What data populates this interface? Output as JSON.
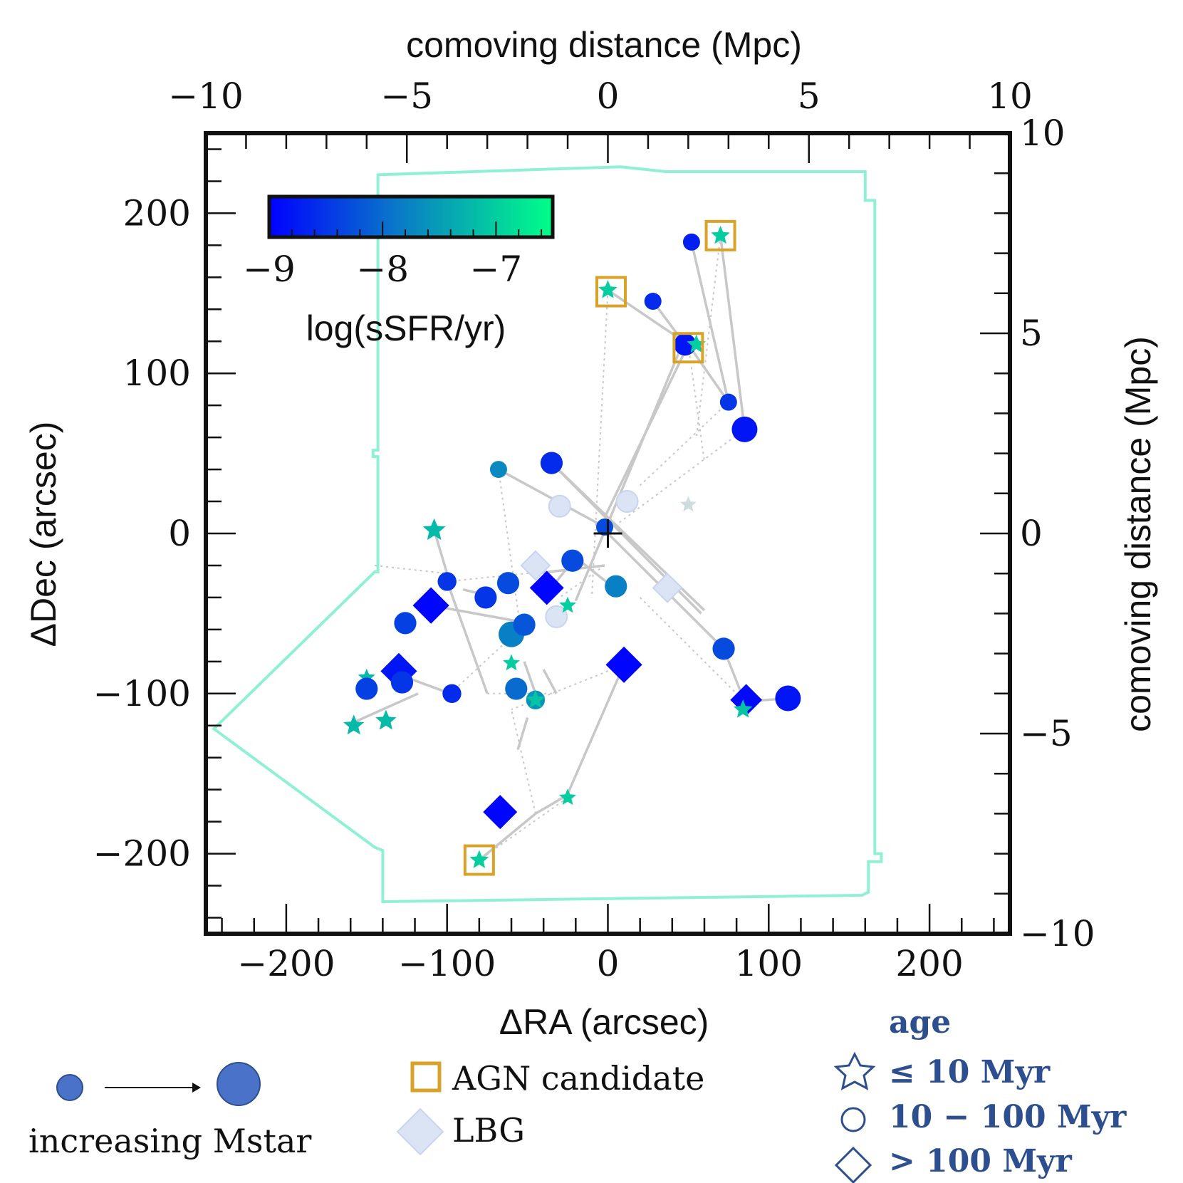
{
  "chart_data": {
    "type": "scatter",
    "xlabel": "ΔRA (arcsec)",
    "ylabel": "ΔDec (arcsec)",
    "top_xlabel": "comoving distance (Mpc)",
    "right_ylabel": "comoving distance (Mpc)",
    "xlim": [
      -250,
      250
    ],
    "ylim": [
      -250,
      250
    ],
    "x_ticks": [
      -200,
      -100,
      0,
      100,
      200
    ],
    "x_tick_labels": [
      "−200",
      "−100",
      "0",
      "100",
      "200"
    ],
    "y_ticks": [
      -200,
      -100,
      0,
      100,
      200
    ],
    "y_tick_labels": [
      "−200",
      "−100",
      "0",
      "100",
      "200"
    ],
    "top_lim": [
      -10,
      10
    ],
    "top_ticks": [
      -10,
      -5,
      0,
      5,
      10
    ],
    "top_tick_labels": [
      "−10",
      "−5",
      "0",
      "5",
      "10"
    ],
    "right_lim": [
      -10,
      10
    ],
    "right_ticks": [
      -10,
      -5,
      0,
      5,
      10
    ],
    "right_tick_labels": [
      "−10",
      "−5",
      "0",
      "5",
      "10"
    ],
    "colorbar": {
      "label": "log(sSFR/yr)",
      "range": [
        -9.0,
        -6.5
      ],
      "ticks": [
        -9,
        -8,
        -7
      ],
      "tick_labels": [
        "−9",
        "−8",
        "−7"
      ],
      "colors": [
        "#0000ff",
        "#00ff88"
      ]
    },
    "footprint": [
      [
        -145,
        225
      ],
      [
        8,
        230
      ],
      [
        8,
        228
      ],
      [
        36,
        228
      ],
      [
        36,
        225
      ],
      [
        160,
        225
      ],
      [
        160,
        210
      ],
      [
        166,
        210
      ],
      [
        166,
        -200
      ],
      [
        170,
        -200
      ],
      [
        170,
        -205
      ],
      [
        162,
        -205
      ],
      [
        162,
        -225
      ],
      [
        158,
        -225
      ],
      [
        158,
        -230
      ],
      [
        -140,
        -232
      ],
      [
        -140,
        -198
      ],
      [
        -145,
        -198
      ],
      [
        -145,
        -20
      ],
      [
        -143,
        -20
      ],
      [
        -143,
        160
      ],
      [
        -145,
        160
      ]
    ],
    "footprint_closure": [
      [
        -145,
        225
      ],
      [
        -145,
        -20
      ],
      [
        -143,
        -20
      ],
      [
        -142,
        50
      ],
      [
        -145,
        50
      ],
      [
        -145,
        -25
      ],
      [
        -245,
        -122
      ],
      [
        -142,
        -196
      ]
    ],
    "edges": [
      [
        [
          -68,
          40
        ],
        [
          -2,
          4
        ]
      ],
      [
        [
          -35,
          44
        ],
        [
          58,
          -50
        ]
      ],
      [
        [
          -35,
          44
        ],
        [
          60,
          -48
        ]
      ],
      [
        [
          50,
          118
        ],
        [
          -2,
          10
        ]
      ],
      [
        [
          28,
          145
        ],
        [
          48,
          118
        ]
      ],
      [
        [
          -100,
          -30
        ],
        [
          -75,
          -100
        ]
      ],
      [
        [
          -118,
          -100
        ],
        [
          -158,
          -118
        ]
      ],
      [
        [
          -98,
          -100
        ],
        [
          -125,
          -90
        ]
      ],
      [
        [
          -70,
          -40
        ],
        [
          -90,
          -35
        ]
      ],
      [
        [
          -52,
          -80
        ],
        [
          -45,
          -100
        ]
      ],
      [
        [
          -32,
          -100
        ],
        [
          -40,
          -85
        ]
      ],
      [
        [
          -45,
          -175
        ],
        [
          -28,
          -165
        ]
      ],
      [
        [
          -80,
          -204
        ],
        [
          -45,
          -175
        ]
      ],
      [
        [
          -56,
          -135
        ],
        [
          -50,
          -115
        ]
      ],
      [
        [
          10,
          -82
        ],
        [
          -26,
          -165
        ]
      ],
      [
        [
          -53,
          -57
        ],
        [
          -63,
          -63
        ]
      ],
      [
        [
          -36,
          -35
        ],
        [
          -20,
          -15
        ]
      ],
      [
        [
          -108,
          2
        ],
        [
          -100,
          -25
        ]
      ],
      [
        [
          5,
          -35
        ],
        [
          -20,
          -15
        ]
      ],
      [
        [
          50,
          118
        ],
        [
          75,
          82
        ]
      ],
      [
        [
          0,
          152
        ],
        [
          50,
          118
        ]
      ],
      [
        [
          70,
          186
        ],
        [
          85,
          65
        ]
      ],
      [
        [
          52,
          182
        ],
        [
          75,
          82
        ]
      ],
      [
        [
          0,
          0
        ],
        [
          72,
          -72
        ]
      ],
      [
        [
          72,
          -72
        ],
        [
          85,
          -105
        ]
      ],
      [
        [
          85,
          -105
        ],
        [
          112,
          -103
        ]
      ],
      [
        [
          -45,
          -25
        ],
        [
          -2,
          -20
        ]
      ],
      [
        [
          45,
          115
        ],
        [
          -20,
          -42
        ]
      ],
      [
        [
          -110,
          -45
        ],
        [
          -55,
          -55
        ]
      ]
    ],
    "dotted_edges": [
      [
        [
          50,
          118
        ],
        [
          60,
          45
        ]
      ],
      [
        [
          85,
          65
        ],
        [
          -2,
          0
        ]
      ],
      [
        [
          75,
          82
        ],
        [
          20,
          30
        ]
      ],
      [
        [
          -100,
          -30
        ],
        [
          -2,
          -20
        ]
      ],
      [
        [
          -75,
          -100
        ],
        [
          -32,
          -100
        ]
      ],
      [
        [
          -68,
          40
        ],
        [
          -55,
          -55
        ]
      ],
      [
        [
          -45,
          -175
        ],
        [
          -60,
          -110
        ]
      ],
      [
        [
          -25,
          -165
        ],
        [
          -80,
          -204
        ]
      ],
      [
        [
          0,
          152
        ],
        [
          -10,
          -40
        ]
      ],
      [
        [
          70,
          186
        ],
        [
          55,
          60
        ]
      ],
      [
        [
          -98,
          -100
        ],
        [
          -55,
          -60
        ]
      ],
      [
        [
          -145,
          -20
        ],
        [
          -100,
          -25
        ]
      ],
      [
        [
          10,
          -82
        ],
        [
          -60,
          -110
        ]
      ],
      [
        [
          -2,
          -20
        ],
        [
          -30,
          -40
        ]
      ],
      [
        [
          20,
          -40
        ],
        [
          85,
          -105
        ]
      ]
    ],
    "points": [
      {
        "x": 52,
        "y": 182,
        "marker": "circle",
        "size": 1.0,
        "ssfr": -8.7
      },
      {
        "x": 70,
        "y": 186,
        "marker": "star",
        "size": 1.0,
        "ssfr": -7.0
      },
      {
        "x": 0,
        "y": 152,
        "marker": "star",
        "size": 1.0,
        "ssfr": -7.0
      },
      {
        "x": 28,
        "y": 145,
        "marker": "circle",
        "size": 1.0,
        "ssfr": -8.6
      },
      {
        "x": 48,
        "y": 118,
        "marker": "circle",
        "size": 1.3,
        "ssfr": -8.8
      },
      {
        "x": 55,
        "y": 118,
        "marker": "star",
        "size": 1.0,
        "ssfr": -7.0
      },
      {
        "x": 75,
        "y": 82,
        "marker": "circle",
        "size": 1.0,
        "ssfr": -8.5
      },
      {
        "x": 85,
        "y": 65,
        "marker": "circle",
        "size": 1.5,
        "ssfr": -8.8
      },
      {
        "x": -68,
        "y": 40,
        "marker": "circle",
        "size": 1.0,
        "ssfr": -7.7
      },
      {
        "x": -35,
        "y": 44,
        "marker": "circle",
        "size": 1.3,
        "ssfr": -8.6
      },
      {
        "x": -108,
        "y": 2,
        "marker": "star",
        "size": 1.2,
        "ssfr": -7.2
      },
      {
        "x": -2,
        "y": 4,
        "marker": "circle",
        "size": 1.0,
        "ssfr": -8.3
      },
      {
        "x": -100,
        "y": -30,
        "marker": "circle",
        "size": 1.1,
        "ssfr": -8.5
      },
      {
        "x": -110,
        "y": -45,
        "marker": "diamond",
        "size": 1.6,
        "ssfr": -8.95
      },
      {
        "x": -126,
        "y": -56,
        "marker": "circle",
        "size": 1.3,
        "ssfr": -8.4
      },
      {
        "x": -76,
        "y": -40,
        "marker": "circle",
        "size": 1.3,
        "ssfr": -8.5
      },
      {
        "x": -62,
        "y": -31,
        "marker": "circle",
        "size": 1.3,
        "ssfr": -8.3
      },
      {
        "x": -38,
        "y": -34,
        "marker": "diamond",
        "size": 1.5,
        "ssfr": -8.95
      },
      {
        "x": -22,
        "y": -17,
        "marker": "circle",
        "size": 1.3,
        "ssfr": -8.3
      },
      {
        "x": 5,
        "y": -33,
        "marker": "circle",
        "size": 1.3,
        "ssfr": -7.8
      },
      {
        "x": -25,
        "y": -45,
        "marker": "star",
        "size": 0.9,
        "ssfr": -7.0
      },
      {
        "x": -60,
        "y": -63,
        "marker": "circle",
        "size": 1.5,
        "ssfr": -7.8
      },
      {
        "x": -52,
        "y": -57,
        "marker": "circle",
        "size": 1.3,
        "ssfr": -8.2
      },
      {
        "x": -60,
        "y": -81,
        "marker": "star",
        "size": 0.9,
        "ssfr": -7.0
      },
      {
        "x": -57,
        "y": -97,
        "marker": "circle",
        "size": 1.3,
        "ssfr": -8.0
      },
      {
        "x": -45,
        "y": -104,
        "marker": "circle",
        "size": 1.1,
        "ssfr": -7.6
      },
      {
        "x": -45,
        "y": -104,
        "marker": "star",
        "size": 1.0,
        "ssfr": -7.1
      },
      {
        "x": -130,
        "y": -86,
        "marker": "diamond",
        "size": 1.6,
        "ssfr": -8.8
      },
      {
        "x": -128,
        "y": -93,
        "marker": "circle",
        "size": 1.3,
        "ssfr": -8.5
      },
      {
        "x": -150,
        "y": -90,
        "marker": "star",
        "size": 0.9,
        "ssfr": -7.2
      },
      {
        "x": -150,
        "y": -97,
        "marker": "circle",
        "size": 1.3,
        "ssfr": -8.4
      },
      {
        "x": -97,
        "y": -100,
        "marker": "circle",
        "size": 1.1,
        "ssfr": -8.6
      },
      {
        "x": -158,
        "y": -120,
        "marker": "star",
        "size": 1.1,
        "ssfr": -7.2
      },
      {
        "x": -138,
        "y": -117,
        "marker": "star",
        "size": 1.1,
        "ssfr": -7.2
      },
      {
        "x": 10,
        "y": -82,
        "marker": "diamond",
        "size": 1.6,
        "ssfr": -8.95
      },
      {
        "x": 72,
        "y": -72,
        "marker": "circle",
        "size": 1.3,
        "ssfr": -8.3
      },
      {
        "x": 86,
        "y": -104,
        "marker": "diamond",
        "size": 1.4,
        "ssfr": -8.9
      },
      {
        "x": 84,
        "y": -110,
        "marker": "star",
        "size": 1.0,
        "ssfr": -7.1
      },
      {
        "x": 112,
        "y": -103,
        "marker": "circle",
        "size": 1.5,
        "ssfr": -8.8
      },
      {
        "x": -25,
        "y": -165,
        "marker": "star",
        "size": 0.9,
        "ssfr": -7.0
      },
      {
        "x": -67,
        "y": -174,
        "marker": "diamond",
        "size": 1.5,
        "ssfr": -8.95
      },
      {
        "x": -80,
        "y": -204,
        "marker": "star",
        "size": 1.0,
        "ssfr": -7.0
      }
    ],
    "lbg_points": [
      {
        "x": -30,
        "y": 17,
        "marker": "circle"
      },
      {
        "x": 12,
        "y": 20,
        "marker": "circle"
      },
      {
        "x": -45,
        "y": -20,
        "marker": "diamond"
      },
      {
        "x": 37,
        "y": -34,
        "marker": "diamond"
      },
      {
        "x": -32,
        "y": -52,
        "marker": "circle"
      },
      {
        "x": 50,
        "y": 18,
        "marker": "star"
      }
    ],
    "agn_candidates": [
      {
        "x": 70,
        "y": 186
      },
      {
        "x": 2,
        "y": 151
      },
      {
        "x": 50,
        "y": 116
      },
      {
        "x": -80,
        "y": -204
      }
    ],
    "center_marker": {
      "x": 0,
      "y": 0
    }
  },
  "legend": {
    "size_label": "increasing Mstar",
    "agn_label": "AGN candidate",
    "lbg_label": "LBG",
    "age_title": "age",
    "age_items": [
      {
        "marker": "star",
        "label": "≤ 10 Myr"
      },
      {
        "marker": "circle",
        "label": "10 − 100 Myr"
      },
      {
        "marker": "diamond",
        "label": "> 100 Myr"
      }
    ]
  },
  "colors": {
    "footprint": "#8ff0d6",
    "edge": "#c8c8c8",
    "agn_box": "#d9a228",
    "lbg": "#dbe4f5",
    "legend_marker": "#4a72c8",
    "age_text": "#2e4f8f"
  }
}
